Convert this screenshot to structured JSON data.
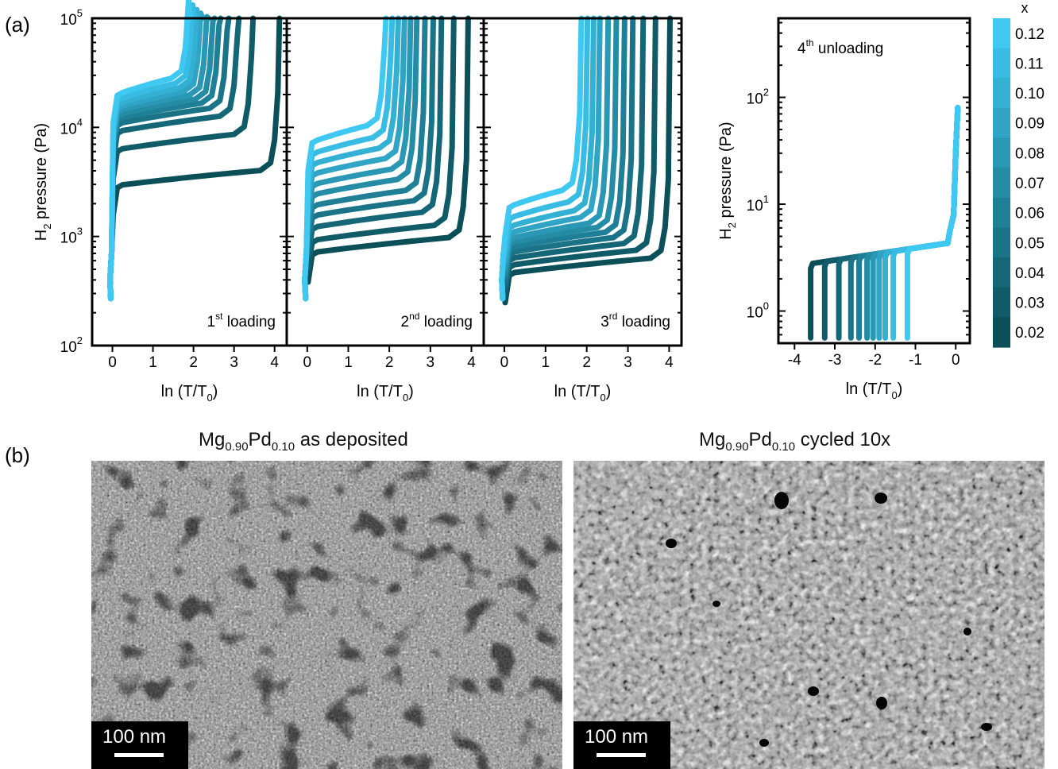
{
  "panel_labels": {
    "a": "(a)",
    "b": "(b)"
  },
  "chart_data": [
    {
      "type": "line",
      "panel_text": [
        "1",
        "st",
        " loading"
      ],
      "xlabel": [
        "ln (T/T",
        "0",
        ")"
      ],
      "ylabel": [
        "H",
        "2",
        " pressure (Pa)"
      ],
      "yscale": "log",
      "ylim": [
        100,
        100000
      ],
      "xlim": [
        -0.5,
        4.3
      ],
      "xticks": [
        0,
        1,
        2,
        3,
        4
      ],
      "yticks": [
        {
          "base": "10",
          "exp": "2"
        },
        {
          "base": "10",
          "exp": "3"
        },
        {
          "base": "10",
          "exp": "4"
        },
        {
          "base": "10",
          "exp": "5"
        }
      ],
      "series_x": [
        0.02,
        0.03,
        0.04,
        0.05,
        0.06,
        0.07,
        0.08,
        0.09,
        0.1,
        0.11,
        0.12
      ],
      "plateau_pressure": [
        3500,
        7500,
        11000,
        13000,
        14500,
        15800,
        17200,
        18500,
        20000,
        22000,
        24500
      ],
      "upturn_lnT": [
        4.0,
        3.35,
        3.0,
        2.75,
        2.55,
        2.4,
        2.25,
        2.1,
        2.0,
        1.9,
        1.8
      ]
    },
    {
      "type": "line",
      "panel_text": [
        "2",
        "nd",
        " loading"
      ],
      "xlabel": [
        "ln (T/T",
        "0",
        ")"
      ],
      "yscale": "log",
      "ylim": [
        100,
        100000
      ],
      "xlim": [
        -0.5,
        4.3
      ],
      "xticks": [
        0,
        1,
        2,
        3,
        4
      ],
      "series_x": [
        0.02,
        0.03,
        0.04,
        0.05,
        0.06,
        0.07,
        0.08,
        0.09,
        0.1,
        0.11,
        0.12
      ],
      "plateau_pressure": [
        850,
        1100,
        1450,
        1850,
        2300,
        2900,
        3600,
        4500,
        5600,
        7000,
        9000
      ],
      "upturn_lnT": [
        3.8,
        3.45,
        3.15,
        2.95,
        2.75,
        2.55,
        2.4,
        2.25,
        2.1,
        1.95,
        1.8
      ]
    },
    {
      "type": "line",
      "panel_text": [
        "3",
        "rd",
        " loading"
      ],
      "xlabel": [
        "ln (T/T",
        "0",
        ")"
      ],
      "yscale": "log",
      "ylim": [
        100,
        100000
      ],
      "xlim": [
        -0.5,
        4.3
      ],
      "xticks": [
        0,
        1,
        2,
        3,
        4
      ],
      "series_x": [
        0.02,
        0.03,
        0.04,
        0.05,
        0.06,
        0.07,
        0.08,
        0.09,
        0.1,
        0.11,
        0.12
      ],
      "plateau_pressure": [
        550,
        650,
        750,
        850,
        950,
        1050,
        1150,
        1300,
        1500,
        1800,
        2300
      ],
      "upturn_lnT": [
        3.9,
        3.55,
        3.25,
        3.0,
        2.8,
        2.6,
        2.4,
        2.2,
        2.05,
        1.9,
        1.75
      ]
    },
    {
      "type": "line",
      "panel_text": [
        "4",
        "th",
        " unloading"
      ],
      "xlabel": [
        "ln (T/T",
        "0",
        ")"
      ],
      "ylabel": [
        "H",
        "2",
        " pressure (Pa)"
      ],
      "yscale": "log",
      "ylim": [
        0.5,
        550
      ],
      "xlim": [
        -4.4,
        0.35
      ],
      "xticks": [
        -4,
        -3,
        -2,
        -1,
        0
      ],
      "yticks": [
        {
          "base": "10",
          "exp": "0"
        },
        {
          "base": "10",
          "exp": "1"
        },
        {
          "base": "10",
          "exp": "2"
        }
      ],
      "series_x": [
        0.02,
        0.03,
        0.04,
        0.05,
        0.06,
        0.07,
        0.08,
        0.09,
        0.1,
        0.11,
        0.12
      ],
      "drop_lnT": [
        -3.6,
        -3.25,
        -2.9,
        -2.6,
        -2.4,
        -2.2,
        -2.05,
        -1.9,
        -1.75,
        -1.55,
        -1.2
      ]
    }
  ],
  "colorbar": {
    "label": "x",
    "ticks": [
      "0.12",
      "0.11",
      "0.10",
      "0.09",
      "0.08",
      "0.07",
      "0.06",
      "0.05",
      "0.04",
      "0.03",
      "0.02"
    ],
    "color_low": "#0b4f58",
    "color_high": "#3ec8f2"
  },
  "images": [
    {
      "title": [
        "Mg",
        "0.90",
        "Pd",
        "0.10",
        " as deposited"
      ],
      "scalebar": "100 nm",
      "texture": "fine"
    },
    {
      "title": [
        "Mg",
        "0.90",
        "Pd",
        "0.10",
        " cycled 10x"
      ],
      "scalebar": "100 nm",
      "texture": "grainy"
    }
  ]
}
